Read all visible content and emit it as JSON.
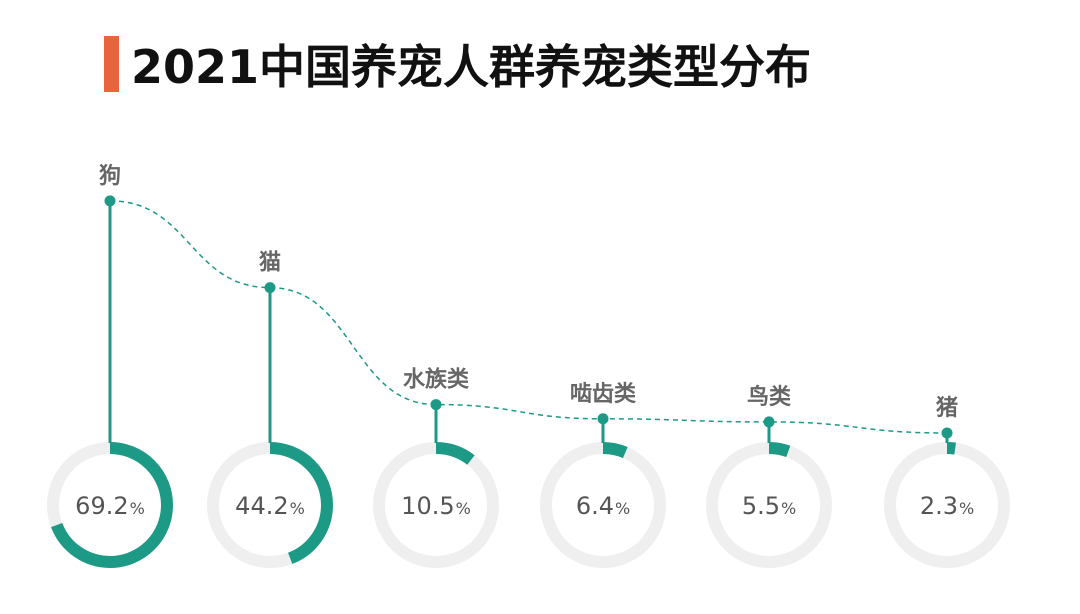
{
  "header": {
    "title": "2021中国养宠人群养宠类型分布"
  },
  "colors": {
    "accent": "#E8643C",
    "teal": "#1D9A85",
    "ring_track": "#EFEFEF",
    "label": "#666666"
  },
  "chart_data": {
    "type": "bar",
    "title": "2021中国养宠人群养宠类型分布",
    "unit": "%",
    "categories": [
      "狗",
      "猫",
      "水族类",
      "啮齿类",
      "鸟类",
      "猪"
    ],
    "values": [
      69.2,
      44.2,
      10.5,
      6.4,
      5.5,
      2.3
    ],
    "value_labels": [
      "69.2",
      "44.2",
      "10.5",
      "6.4",
      "5.5",
      "2.3"
    ],
    "ylim": [
      0,
      100
    ],
    "grid": false,
    "legend": "none"
  }
}
